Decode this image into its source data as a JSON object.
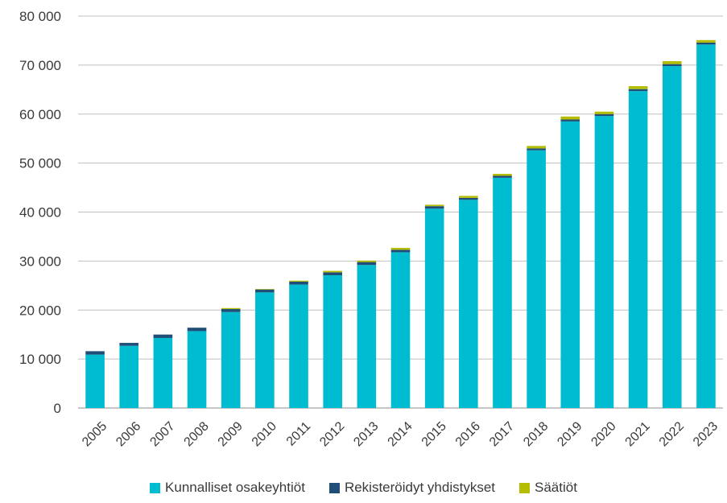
{
  "chart_data": {
    "type": "bar",
    "stacked": true,
    "categories": [
      "2005",
      "2006",
      "2007",
      "2008",
      "2009",
      "2010",
      "2011",
      "2012",
      "2013",
      "2014",
      "2015",
      "2016",
      "2017",
      "2018",
      "2019",
      "2020",
      "2021",
      "2022",
      "2023"
    ],
    "series": [
      {
        "name": "Kunnalliset osakeyhtiöt",
        "color": "#00bcd0",
        "values": [
          10900,
          12700,
          14300,
          15700,
          19600,
          23600,
          25200,
          27100,
          29200,
          31800,
          40700,
          42500,
          47000,
          52600,
          58500,
          59600,
          64700,
          69800,
          74200
        ]
      },
      {
        "name": "Rekisteröidyt yhdistykset",
        "color": "#1f4e79",
        "values": [
          700,
          600,
          700,
          700,
          600,
          600,
          600,
          600,
          600,
          500,
          500,
          400,
          400,
          400,
          400,
          400,
          400,
          400,
          400
        ]
      },
      {
        "name": "Säätiöt",
        "color": "#b5bd00",
        "values": [
          0,
          0,
          0,
          0,
          200,
          100,
          200,
          300,
          300,
          400,
          300,
          400,
          400,
          500,
          600,
          500,
          600,
          600,
          500
        ]
      }
    ],
    "ylim": [
      0,
      80000
    ],
    "yticks": [
      0,
      10000,
      20000,
      30000,
      40000,
      50000,
      60000,
      70000,
      80000
    ],
    "ytick_labels": [
      "0",
      "10 000",
      "20 000",
      "30 000",
      "40 000",
      "50 000",
      "60 000",
      "70 000",
      "80 000"
    ],
    "grid": true,
    "legend_position": "bottom"
  }
}
